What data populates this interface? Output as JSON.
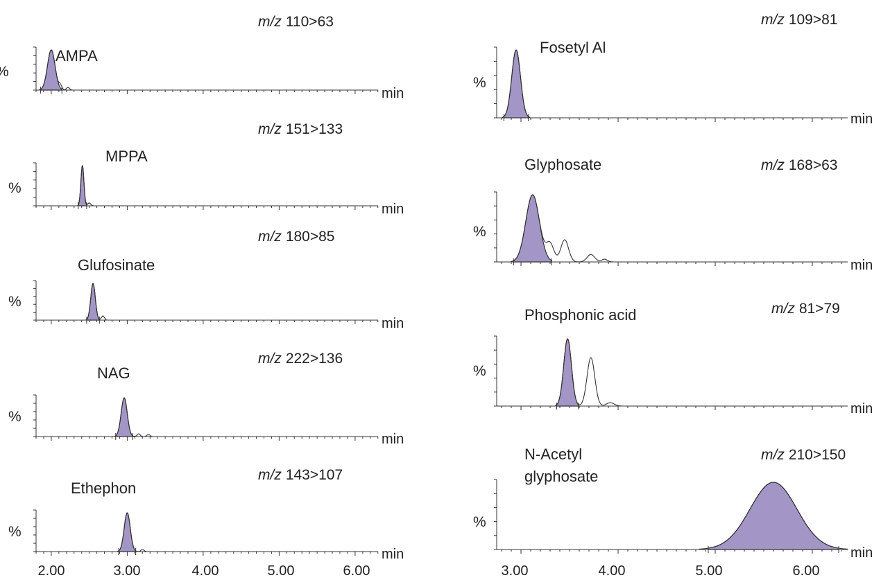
{
  "colors": {
    "peak_fill": "#a396c7",
    "line": "#333333"
  },
  "panels": {
    "left": {
      "x_ticks": [
        "2.00",
        "3.00",
        "4.00",
        "5.00",
        "6.00"
      ],
      "traces": [
        {
          "compound": "AMPA",
          "mz_prefix": "m/z",
          "mz_value": "110>63",
          "y_label": "%",
          "x_unit": "min"
        },
        {
          "compound": "MPPA",
          "mz_prefix": "m/z",
          "mz_value": "151>133",
          "y_label": "%",
          "x_unit": "min"
        },
        {
          "compound": "Glufosinate",
          "mz_prefix": "m/z",
          "mz_value": "180>85",
          "y_label": "%",
          "x_unit": "min"
        },
        {
          "compound": "NAG",
          "mz_prefix": "m/z",
          "mz_value": "222>136",
          "y_label": "%",
          "x_unit": "min"
        },
        {
          "compound": "Ethephon",
          "mz_prefix": "m/z",
          "mz_value": "143>107",
          "y_label": "%",
          "x_unit": "min"
        }
      ]
    },
    "right": {
      "x_ticks": [
        "3.00",
        "4.00",
        "5.00",
        "6.00"
      ],
      "traces": [
        {
          "compound": "Fosetyl Al",
          "mz_prefix": "m/z",
          "mz_value": "109>81",
          "y_label": "%",
          "x_unit": "min"
        },
        {
          "compound": "Glyphosate",
          "mz_prefix": "m/z",
          "mz_value": "168>63",
          "y_label": "%",
          "x_unit": "min"
        },
        {
          "compound": "Phosphonic acid",
          "mz_prefix": "m/z",
          "mz_value": "81>79",
          "y_label": "%",
          "x_unit": "min"
        },
        {
          "compound_line1": "N-Acetyl",
          "compound_line2": "glyphosate",
          "mz_prefix": "m/z",
          "mz_value": "210>150",
          "y_label": "%",
          "x_unit": "min"
        }
      ]
    }
  },
  "chart_data": [
    {
      "type": "line",
      "title": "AMPA",
      "subtitle": "m/z 110>63",
      "xlabel": "min",
      "ylabel": "%",
      "xlim": [
        1.8,
        6.3
      ],
      "x_ticks": [
        2,
        3,
        4,
        5,
        6
      ],
      "series": [
        {
          "name": "AMPA",
          "peaks": [
            {
              "rt": 2.0,
              "height": 100,
              "width": 0.05,
              "shaded": true
            }
          ],
          "baseline_noise": [
            [
              2.12,
              6
            ],
            [
              2.22,
              4
            ]
          ]
        }
      ]
    },
    {
      "type": "line",
      "title": "MPPA",
      "subtitle": "m/z 151>133",
      "xlabel": "min",
      "ylabel": "%",
      "xlim": [
        1.8,
        6.3
      ],
      "x_ticks": [
        2,
        3,
        4,
        5,
        6
      ],
      "series": [
        {
          "name": "MPPA",
          "peaks": [
            {
              "rt": 2.41,
              "height": 100,
              "width": 0.02,
              "shaded": true
            }
          ],
          "baseline_noise": [
            [
              2.5,
              4
            ]
          ]
        }
      ]
    },
    {
      "type": "line",
      "title": "Glufosinate",
      "subtitle": "m/z 180>85",
      "xlabel": "min",
      "ylabel": "%",
      "xlim": [
        1.8,
        6.3
      ],
      "x_ticks": [
        2,
        3,
        4,
        5,
        6
      ],
      "series": [
        {
          "name": "Glufosinate",
          "peaks": [
            {
              "rt": 2.55,
              "height": 100,
              "width": 0.03,
              "shaded": true
            }
          ],
          "baseline_noise": [
            [
              2.68,
              6
            ]
          ]
        }
      ]
    },
    {
      "type": "line",
      "title": "NAG",
      "subtitle": "m/z 222>136",
      "xlabel": "min",
      "ylabel": "%",
      "xlim": [
        1.8,
        6.3
      ],
      "x_ticks": [
        2,
        3,
        4,
        5,
        6
      ],
      "series": [
        {
          "name": "NAG",
          "peaks": [
            {
              "rt": 2.96,
              "height": 100,
              "width": 0.04,
              "shaded": true
            }
          ],
          "baseline_noise": [
            [
              3.15,
              4
            ],
            [
              3.28,
              3
            ]
          ]
        }
      ]
    },
    {
      "type": "line",
      "title": "Ethephon",
      "subtitle": "m/z 143>107",
      "xlabel": "min",
      "ylabel": "%",
      "xlim": [
        1.8,
        6.3
      ],
      "x_ticks": [
        2,
        3,
        4,
        5,
        6
      ],
      "series": [
        {
          "name": "Ethephon",
          "peaks": [
            {
              "rt": 3.0,
              "height": 100,
              "width": 0.04,
              "shaded": true
            }
          ],
          "baseline_noise": [
            [
              3.2,
              3
            ]
          ]
        }
      ]
    },
    {
      "type": "line",
      "title": "Fosetyl Al",
      "subtitle": "m/z 109>81",
      "xlabel": "min",
      "ylabel": "%",
      "xlim": [
        2.75,
        6.4
      ],
      "x_ticks": [
        3,
        4,
        5,
        6
      ],
      "series": [
        {
          "name": "Fosetyl Al",
          "peaks": [
            {
              "rt": 2.95,
              "height": 100,
              "width": 0.045,
              "shaded": true
            }
          ]
        }
      ]
    },
    {
      "type": "line",
      "title": "Glyphosate",
      "subtitle": "m/z 168>63",
      "xlabel": "min",
      "ylabel": "%",
      "xlim": [
        2.75,
        6.4
      ],
      "x_ticks": [
        3,
        4,
        5,
        6
      ],
      "series": [
        {
          "name": "Glyphosate",
          "peaks": [
            {
              "rt": 3.12,
              "height": 100,
              "width": 0.07,
              "shaded": true
            },
            {
              "rt": 3.3,
              "height": 26,
              "width": 0.04,
              "shaded": false
            },
            {
              "rt": 3.45,
              "height": 33,
              "width": 0.04,
              "shaded": false
            },
            {
              "rt": 3.72,
              "height": 11,
              "width": 0.04,
              "shaded": false
            },
            {
              "rt": 3.86,
              "height": 4,
              "width": 0.03,
              "shaded": false
            }
          ]
        }
      ]
    },
    {
      "type": "line",
      "title": "Phosphonic acid",
      "subtitle": "m/z 81>79",
      "xlabel": "min",
      "ylabel": "%",
      "xlim": [
        2.75,
        6.4
      ],
      "x_ticks": [
        3,
        4,
        5,
        6
      ],
      "series": [
        {
          "name": "Phosphonic acid",
          "peaks": [
            {
              "rt": 3.48,
              "height": 100,
              "width": 0.04,
              "shaded": true
            },
            {
              "rt": 3.72,
              "height": 72,
              "width": 0.04,
              "shaded": false
            },
            {
              "rt": 3.92,
              "height": 5,
              "width": 0.04,
              "shaded": false
            }
          ]
        }
      ]
    },
    {
      "type": "line",
      "title": "N-Acetyl glyphosate",
      "subtitle": "m/z 210>150",
      "xlabel": "min",
      "ylabel": "%",
      "xlim": [
        2.75,
        6.4
      ],
      "x_ticks": [
        3,
        4,
        5,
        6
      ],
      "series": [
        {
          "name": "N-Acetyl glyphosate",
          "peaks": [
            {
              "rt": 5.6,
              "height": 100,
              "width": 0.24,
              "shaded": true
            }
          ]
        }
      ]
    }
  ]
}
